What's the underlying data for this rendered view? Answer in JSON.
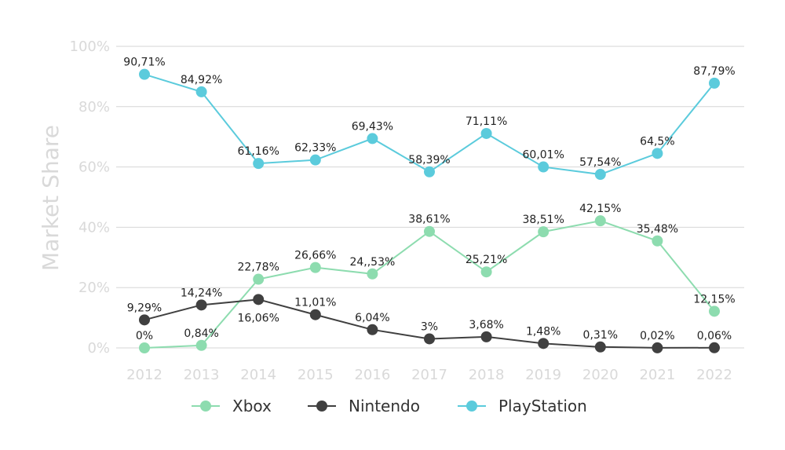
{
  "chart_data": {
    "type": "line",
    "ylabel": "Market Share",
    "ylim": [
      0,
      100
    ],
    "grid": true,
    "legend_position": "bottom",
    "y_ticks": [
      "0%",
      "20%",
      "40%",
      "60%",
      "80%",
      "100%"
    ],
    "x": [
      "2012",
      "2013",
      "2014",
      "2015",
      "2016",
      "2017",
      "2018",
      "2019",
      "2020",
      "2021",
      "2022"
    ],
    "series": [
      {
        "name": "Xbox",
        "color": "#8ddcaf",
        "values": [
          0,
          0.84,
          22.78,
          26.66,
          24.53,
          38.61,
          25.21,
          38.51,
          42.15,
          35.48,
          12.15
        ],
        "labels": [
          "0%",
          "0,84%",
          "22,78%",
          "26,66%",
          "24,,53%",
          "38,61%",
          "25,21%",
          "38,51%",
          "42,15%",
          "35,48%",
          "12,15%"
        ]
      },
      {
        "name": "Nintendo",
        "color": "#404040",
        "values": [
          9.29,
          14.24,
          16.06,
          11.01,
          6.04,
          3,
          3.68,
          1.48,
          0.31,
          0.02,
          0.06
        ],
        "labels": [
          "9,29%",
          "14,24%",
          "16,06%",
          "11,01%",
          "6,04%",
          "3%",
          "3,68%",
          "1,48%",
          "0,31%",
          "0,02%",
          "0,06%"
        ]
      },
      {
        "name": "PlayStation",
        "color": "#5bcbdc",
        "values": [
          90.71,
          84.92,
          61.16,
          62.33,
          69.43,
          58.39,
          71.11,
          60.01,
          57.54,
          64.5,
          87.79
        ],
        "labels": [
          "90,71%",
          "84,92%",
          "61,16%",
          "62,33%",
          "69,43%",
          "58,39%",
          "71,11%",
          "60,01%",
          "57,54%",
          "64,5%",
          "87,79%"
        ]
      }
    ]
  }
}
